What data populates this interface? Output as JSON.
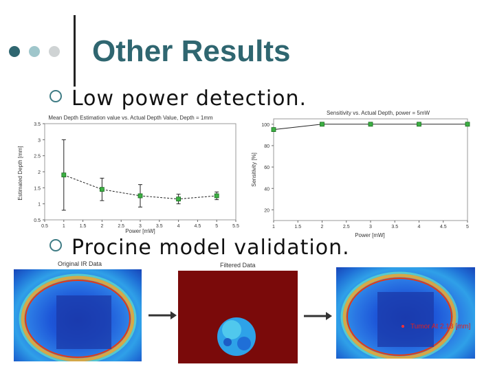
{
  "slide": {
    "title": "Other Results",
    "bullets": [
      "Low power detection.",
      "Procine model validation."
    ]
  },
  "decor": {
    "dots": [
      "#2f6670",
      "#9fc6cb",
      "#cfd3d4"
    ],
    "accent": "#2f6670"
  },
  "chart_data": [
    {
      "type": "line",
      "title": "Mean Depth Estimation value vs. Actual Depth Value, Depth = 1mm",
      "xlabel": "Power [mW]",
      "ylabel": "Estimated Depth [mm]",
      "xlim": [
        0.5,
        5.5
      ],
      "ylim": [
        0.5,
        3.5
      ],
      "x_ticks": [
        "0.5",
        "1",
        "1.5",
        "2",
        "2.5",
        "3",
        "3.5",
        "4",
        "4.5",
        "5",
        "5.5"
      ],
      "y_ticks": [
        "0.5",
        "1",
        "1.5",
        "2",
        "2.5",
        "3",
        "3.5"
      ],
      "series": [
        {
          "x": [
            1,
            2,
            3,
            4,
            5
          ],
          "y": [
            1.9,
            1.45,
            1.25,
            1.15,
            1.25
          ],
          "error": [
            1.1,
            0.35,
            0.35,
            0.15,
            0.12
          ]
        }
      ],
      "grid": false
    },
    {
      "type": "line",
      "title": "Sensitivity vs. Actual Depth, power = 5mW",
      "xlabel": "Power [mW]",
      "ylabel": "Sensitivity [%]",
      "xlim": [
        1,
        5
      ],
      "ylim": [
        10,
        105
      ],
      "x_ticks": [
        "1",
        "1.5",
        "2",
        "2.5",
        "3",
        "3.5",
        "4",
        "4.5",
        "5"
      ],
      "y_ticks": [
        "20",
        "40",
        "60",
        "80",
        "100"
      ],
      "series": [
        {
          "x": [
            1,
            2,
            3,
            4,
            5
          ],
          "y": [
            95,
            100,
            100,
            100,
            100
          ]
        }
      ],
      "grid": false
    }
  ],
  "images": {
    "left_caption": "Original IR Data",
    "middle_caption": "Filtered Data",
    "right_label": "Tumor At 2.13 [mm]"
  }
}
